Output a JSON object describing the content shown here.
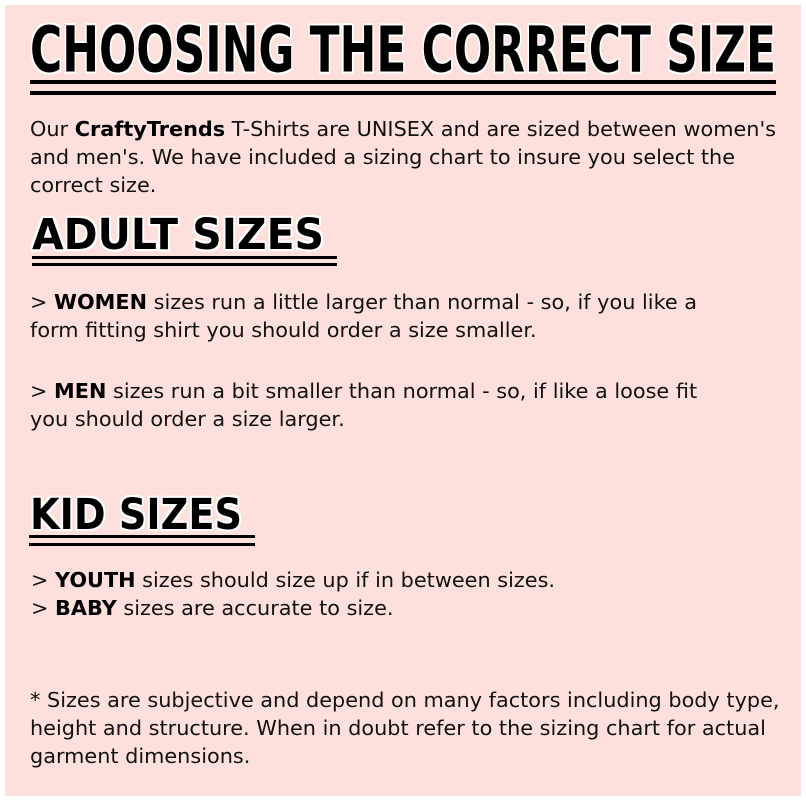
{
  "title": "CHOOSING THE CORRECT SIZE",
  "intro": {
    "line1_prefix": "Our ",
    "brand": "CraftyTrends",
    "line1_suffix": " T-Shirts are UNISEX and are sized between women's",
    "line2": "and men's.  We have included a sizing chart to insure you select the",
    "line3": "correct size."
  },
  "adult": {
    "heading": "ADULT SIZES",
    "women": {
      "marker": "> ",
      "label": "WOMEN",
      "line1": " sizes run a little larger than normal - so, if you like a",
      "line2": "form fitting shirt you should order a size smaller."
    },
    "men": {
      "marker": "> ",
      "label": "MEN",
      "line1": " sizes run a bit smaller than normal - so, if like a loose fit",
      "line2": "you should order a size larger."
    }
  },
  "kid": {
    "heading": "KID SIZES",
    "youth": {
      "marker": "> ",
      "label": "YOUTH",
      "text": " sizes should size up if in between sizes."
    },
    "baby": {
      "marker": "> ",
      "label": "BABY",
      "text": " sizes are accurate to size."
    }
  },
  "footnote": {
    "line1": "* Sizes are subjective and depend on many factors including body type,",
    "line2": "height and structure.  When in doubt refer to the sizing chart for actual",
    "line3": "garment dimensions."
  },
  "colors": {
    "background": "#fde0db",
    "text": "#000000"
  }
}
